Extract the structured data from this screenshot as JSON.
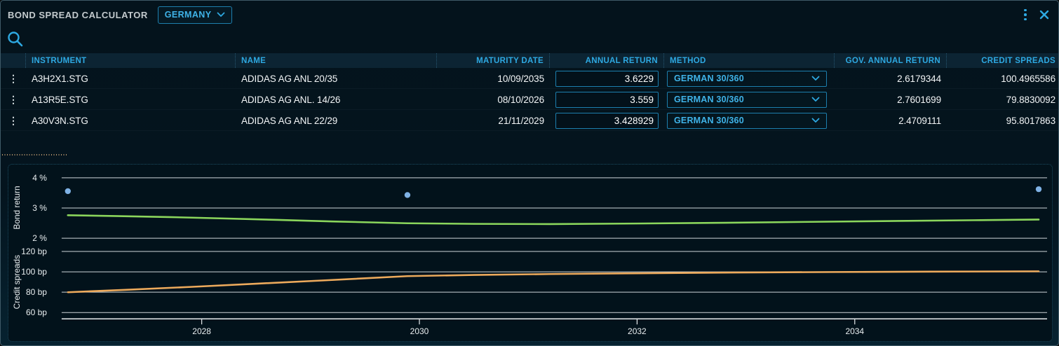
{
  "window": {
    "title": "BOND SPREAD CALCULATOR",
    "country_selector": {
      "value": "GERMANY"
    }
  },
  "icons": {
    "menu": "kebab-vertical",
    "close": "x",
    "search": "magnifier",
    "chevron": "chevron-down",
    "row_menu": "kebab-vertical"
  },
  "colors": {
    "accent_cyan": "#2ea9e2",
    "border_cyan": "#1d7fae",
    "bond_return_line": "#8bd65c",
    "credit_spread_line": "#edaa5c",
    "scatter_blue": "#7fb2e5",
    "grid_line": "#e2e7ea",
    "header_row_bg": "#0c2433",
    "window_bg": "#04131c"
  },
  "table": {
    "columns": [
      {
        "key": "handle",
        "label": "",
        "align": "left"
      },
      {
        "key": "instrument",
        "label": "INSTRUMENT",
        "align": "left"
      },
      {
        "key": "name",
        "label": "NAME",
        "align": "left"
      },
      {
        "key": "maturity_date",
        "label": "MATURITY DATE",
        "align": "right"
      },
      {
        "key": "annual_return",
        "label": "ANNUAL RETURN",
        "align": "right"
      },
      {
        "key": "method",
        "label": "METHOD",
        "align": "left"
      },
      {
        "key": "gov_annual_return",
        "label": "GOV. ANNUAL RETURN",
        "align": "right"
      },
      {
        "key": "credit_spreads",
        "label": "CREDIT SPREADS",
        "align": "right"
      }
    ],
    "rows": [
      {
        "instrument": "A3H2X1.STG",
        "name": "ADIDAS AG ANL 20/35",
        "maturity_date": "10/09/2035",
        "annual_return": "3.6229",
        "method": "GERMAN 30/360",
        "gov_annual_return": "2.6179344",
        "credit_spreads": "100.4965586"
      },
      {
        "instrument": "A13R5E.STG",
        "name": "ADIDAS AG ANL. 14/26",
        "maturity_date": "08/10/2026",
        "annual_return": "3.559",
        "method": "GERMAN 30/360",
        "gov_annual_return": "2.7601699",
        "credit_spreads": "79.8830092"
      },
      {
        "instrument": "A30V3N.STG",
        "name": "ADIDAS AG ANL 22/29",
        "maturity_date": "21/11/2029",
        "annual_return": "3.428929",
        "method": "GERMAN 30/360",
        "gov_annual_return": "2.4709111",
        "credit_spreads": "95.8017863"
      }
    ]
  },
  "chart_data": {
    "type": "line",
    "x_range": [
      2026.7,
      2035.8
    ],
    "x_ticks": [
      {
        "v": 2028,
        "label": "2028"
      },
      {
        "v": 2030,
        "label": "2030"
      },
      {
        "v": 2032,
        "label": "2032"
      },
      {
        "v": 2034,
        "label": "2034"
      }
    ],
    "grid": true,
    "legend": "none",
    "panels": [
      {
        "axis_label": "Bond return",
        "y_range": [
          1.8,
          4.2
        ],
        "y_ticks": [
          {
            "v": 4,
            "label": "4 %"
          },
          {
            "v": 3,
            "label": "3 %"
          },
          {
            "v": 2,
            "label": "2 %"
          }
        ],
        "series": [
          {
            "name": "gov-annual-return-curve",
            "type": "line",
            "color": "#8bd65c",
            "points": [
              [
                2026.77,
                2.76
              ],
              [
                2027.2,
                2.735
              ],
              [
                2027.7,
                2.7
              ],
              [
                2028.2,
                2.655
              ],
              [
                2028.7,
                2.607
              ],
              [
                2029.2,
                2.557
              ],
              [
                2029.89,
                2.497
              ],
              [
                2030.5,
                2.476
              ],
              [
                2031.2,
                2.47
              ],
              [
                2032.0,
                2.487
              ],
              [
                2032.8,
                2.513
              ],
              [
                2033.6,
                2.543
              ],
              [
                2034.4,
                2.573
              ],
              [
                2035.1,
                2.597
              ],
              [
                2035.69,
                2.618
              ]
            ]
          },
          {
            "name": "bond-annual-return-points",
            "type": "scatter",
            "color": "#7fb2e5",
            "points": [
              [
                2026.77,
                3.559
              ],
              [
                2029.89,
                3.428929
              ],
              [
                2035.69,
                3.6229
              ]
            ]
          }
        ]
      },
      {
        "axis_label": "Credit spreads",
        "y_range": [
          55,
          125
        ],
        "y_ticks": [
          {
            "v": 120,
            "label": "120 bp"
          },
          {
            "v": 100,
            "label": "100 bp"
          },
          {
            "v": 80,
            "label": "80 bp"
          },
          {
            "v": 60,
            "label": "60 bp"
          }
        ],
        "series": [
          {
            "name": "credit-spreads-curve",
            "type": "line",
            "color": "#edaa5c",
            "points": [
              [
                2026.77,
                79.9
              ],
              [
                2027.3,
                82.3
              ],
              [
                2027.9,
                85.2
              ],
              [
                2028.5,
                88.3
              ],
              [
                2029.1,
                91.5
              ],
              [
                2029.89,
                95.8
              ],
              [
                2030.5,
                96.9
              ],
              [
                2031.2,
                97.8
              ],
              [
                2032.0,
                98.6
              ],
              [
                2032.9,
                99.3
              ],
              [
                2033.8,
                99.8
              ],
              [
                2034.7,
                100.2
              ],
              [
                2035.69,
                100.5
              ]
            ]
          }
        ]
      }
    ]
  }
}
